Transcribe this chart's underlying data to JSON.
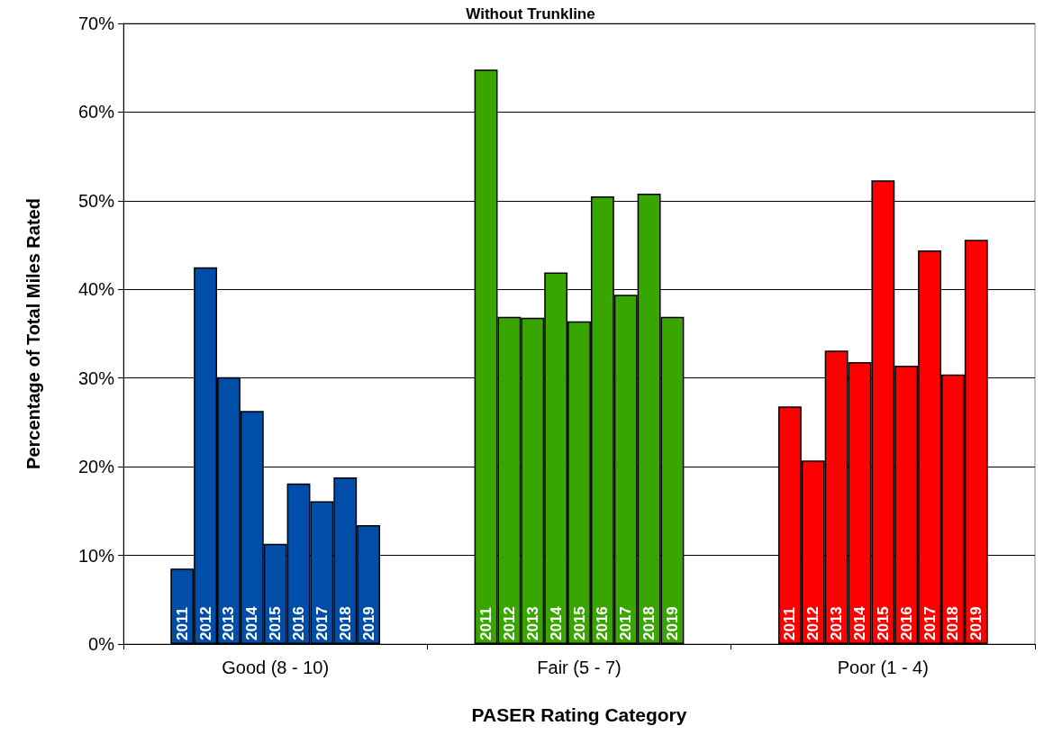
{
  "chart_data": {
    "type": "bar",
    "title": "Without Trunkline",
    "xlabel": "PASER Rating Category",
    "ylabel": "Percentage of Total Miles Rated",
    "categories": [
      "Good (8 - 10)",
      "Fair (5 - 7)",
      "Poor (1 - 4)"
    ],
    "series": [
      {
        "name": "2011",
        "colors": [
          "#004ea8",
          "#38a500",
          "#ff0000"
        ],
        "values": [
          8.5,
          64.8,
          26.8
        ]
      },
      {
        "name": "2012",
        "colors": [
          "#004ea8",
          "#38a500",
          "#ff0000"
        ],
        "values": [
          42.5,
          36.9,
          20.7
        ]
      },
      {
        "name": "2013",
        "colors": [
          "#004ea8",
          "#38a500",
          "#ff0000"
        ],
        "values": [
          30.1,
          36.8,
          33.1
        ]
      },
      {
        "name": "2014",
        "colors": [
          "#004ea8",
          "#38a500",
          "#ff0000"
        ],
        "values": [
          26.3,
          41.9,
          31.8
        ]
      },
      {
        "name": "2015",
        "colors": [
          "#004ea8",
          "#38a500",
          "#ff0000"
        ],
        "values": [
          11.3,
          36.4,
          52.3
        ]
      },
      {
        "name": "2016",
        "colors": [
          "#004ea8",
          "#38a500",
          "#ff0000"
        ],
        "values": [
          18.1,
          50.5,
          31.4
        ]
      },
      {
        "name": "2017",
        "colors": [
          "#004ea8",
          "#38a500",
          "#ff0000"
        ],
        "values": [
          16.1,
          39.4,
          44.4
        ]
      },
      {
        "name": "2018",
        "colors": [
          "#004ea8",
          "#38a500",
          "#ff0000"
        ],
        "values": [
          18.8,
          50.8,
          30.4
        ]
      },
      {
        "name": "2019",
        "colors": [
          "#004ea8",
          "#38a500",
          "#ff0000"
        ],
        "values": [
          13.4,
          36.9,
          45.6
        ]
      }
    ],
    "ylim": [
      0,
      70
    ],
    "yticks": [
      {
        "value": 0,
        "label": "0%"
      },
      {
        "value": 10,
        "label": "10%"
      },
      {
        "value": 20,
        "label": "20%"
      },
      {
        "value": 30,
        "label": "30%"
      },
      {
        "value": 40,
        "label": "40%"
      },
      {
        "value": 50,
        "label": "50%"
      },
      {
        "value": 60,
        "label": "60%"
      },
      {
        "value": 70,
        "label": "70%"
      }
    ],
    "grid": "y",
    "legend": false
  }
}
